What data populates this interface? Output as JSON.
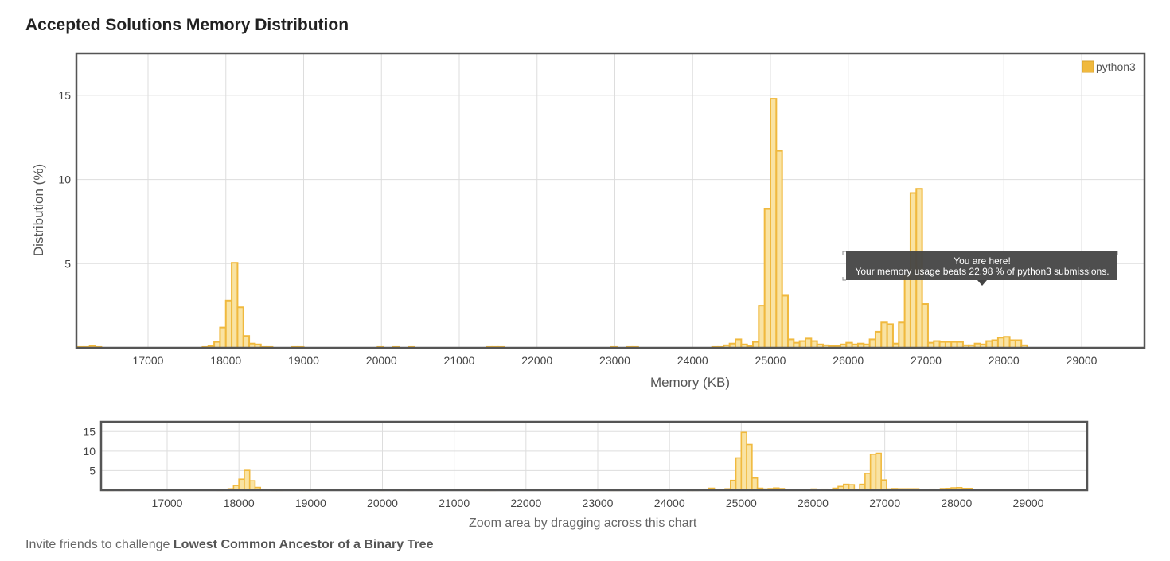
{
  "page": {
    "title": "Accepted Solutions Memory Distribution",
    "footer_prefix": "Invite friends to challenge ",
    "footer_problem": "Lowest Common Ancestor of a Binary Tree",
    "zoom_hint": "Zoom area by dragging across this chart"
  },
  "colors": {
    "bar_fill": "#f9e3a3",
    "bar_stroke": "#f0b93e",
    "legend_swatch": "#f0b93e",
    "tooltip_bg": "#444444",
    "grid": "#dddddd",
    "frame": "#555555"
  },
  "tooltip": {
    "line1": "You are here!",
    "line2": "Your memory usage beats 22.98 % of python3 submissions."
  },
  "chart_data": {
    "type": "bar",
    "xlabel": "Memory (KB)",
    "ylabel": "Distribution (%)",
    "legend": {
      "name": "python3",
      "position": "top-right"
    },
    "xlim": [
      16100,
      29900
    ],
    "ylim": [
      0,
      17.5
    ],
    "xticks": [
      17000,
      18000,
      19000,
      20000,
      21000,
      22000,
      23000,
      24000,
      25000,
      26000,
      27000,
      28000,
      29000
    ],
    "yticks": [
      5,
      10,
      15
    ],
    "bin_width": 75,
    "series": [
      {
        "name": "python3",
        "bins": [
          [
            16100,
            0.05
          ],
          [
            16175,
            0.05
          ],
          [
            16250,
            0.1
          ],
          [
            16325,
            0.05
          ],
          [
            17700,
            0.05
          ],
          [
            17775,
            0.1
          ],
          [
            17850,
            0.35
          ],
          [
            17925,
            1.2
          ],
          [
            18000,
            2.8
          ],
          [
            18075,
            5.05
          ],
          [
            18150,
            2.4
          ],
          [
            18225,
            0.7
          ],
          [
            18300,
            0.25
          ],
          [
            18375,
            0.2
          ],
          [
            18450,
            0.05
          ],
          [
            18525,
            0.05
          ],
          [
            18850,
            0.05
          ],
          [
            18925,
            0.05
          ],
          [
            19950,
            0.05
          ],
          [
            20150,
            0.05
          ],
          [
            20350,
            0.05
          ],
          [
            21350,
            0.05
          ],
          [
            21425,
            0.05
          ],
          [
            21500,
            0.05
          ],
          [
            22950,
            0.05
          ],
          [
            23150,
            0.05
          ],
          [
            23225,
            0.05
          ],
          [
            24250,
            0.05
          ],
          [
            24325,
            0.05
          ],
          [
            24400,
            0.15
          ],
          [
            24475,
            0.25
          ],
          [
            24550,
            0.5
          ],
          [
            24625,
            0.2
          ],
          [
            24700,
            0.1
          ],
          [
            24775,
            0.35
          ],
          [
            24850,
            2.5
          ],
          [
            24925,
            8.25
          ],
          [
            25000,
            14.8
          ],
          [
            25075,
            11.7
          ],
          [
            25150,
            3.1
          ],
          [
            25225,
            0.5
          ],
          [
            25300,
            0.3
          ],
          [
            25375,
            0.4
          ],
          [
            25450,
            0.55
          ],
          [
            25525,
            0.4
          ],
          [
            25600,
            0.2
          ],
          [
            25675,
            0.15
          ],
          [
            25750,
            0.1
          ],
          [
            25825,
            0.1
          ],
          [
            25900,
            0.2
          ],
          [
            25975,
            0.3
          ],
          [
            26050,
            0.2
          ],
          [
            26125,
            0.25
          ],
          [
            26200,
            0.2
          ],
          [
            26275,
            0.5
          ],
          [
            26350,
            0.95
          ],
          [
            26425,
            1.5
          ],
          [
            26500,
            1.4
          ],
          [
            26575,
            0.25
          ],
          [
            26650,
            1.5
          ],
          [
            26725,
            4.3
          ],
          [
            26800,
            9.2
          ],
          [
            26875,
            9.45
          ],
          [
            26950,
            2.6
          ],
          [
            27025,
            0.3
          ],
          [
            27100,
            0.4
          ],
          [
            27175,
            0.35
          ],
          [
            27250,
            0.35
          ],
          [
            27325,
            0.35
          ],
          [
            27400,
            0.35
          ],
          [
            27475,
            0.15
          ],
          [
            27550,
            0.15
          ],
          [
            27625,
            0.25
          ],
          [
            27700,
            0.2
          ],
          [
            27775,
            0.4
          ],
          [
            27850,
            0.45
          ],
          [
            27925,
            0.6
          ],
          [
            28000,
            0.65
          ],
          [
            28075,
            0.45
          ],
          [
            28150,
            0.45
          ],
          [
            28225,
            0.15
          ]
        ]
      }
    ]
  }
}
